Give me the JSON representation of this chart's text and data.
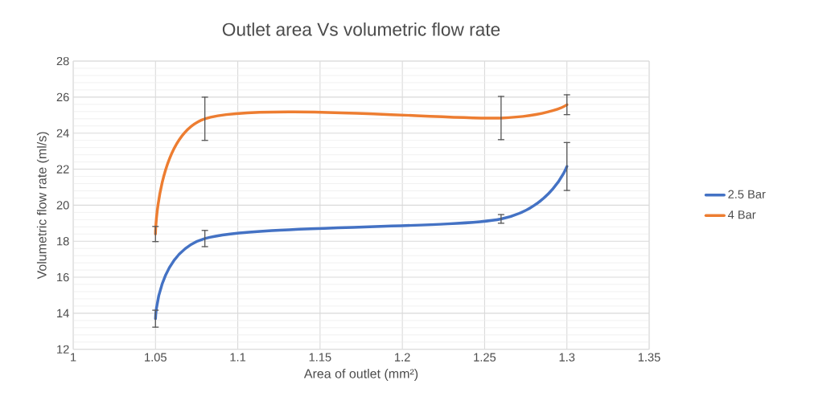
{
  "chart_data": {
    "type": "line",
    "title": "Outlet area Vs volumetric flow rate",
    "xlabel": "Area of outlet (mm²)",
    "ylabel": "Volumetric flow rate (ml/s)",
    "x": [
      1.05,
      1.08,
      1.26,
      1.3
    ],
    "series": [
      {
        "name": "2.5 Bar",
        "color": "#4472c4",
        "values": [
          13.7,
          18.15,
          19.24,
          22.15
        ],
        "errors": [
          0.47,
          0.45,
          0.24,
          1.33
        ]
      },
      {
        "name": "4 Bar",
        "color": "#ed7d31",
        "values": [
          18.4,
          24.8,
          24.84,
          25.58
        ],
        "errors": [
          0.42,
          1.2,
          1.2,
          0.55
        ]
      }
    ],
    "xlim": [
      1,
      1.35
    ],
    "xticks": [
      1,
      1.05,
      1.1,
      1.15,
      1.2,
      1.25,
      1.3,
      1.35
    ],
    "ylim": [
      12,
      28
    ],
    "yticks": [
      12,
      14,
      16,
      18,
      20,
      22,
      24,
      26,
      28
    ],
    "grid": true,
    "legend": "right"
  }
}
